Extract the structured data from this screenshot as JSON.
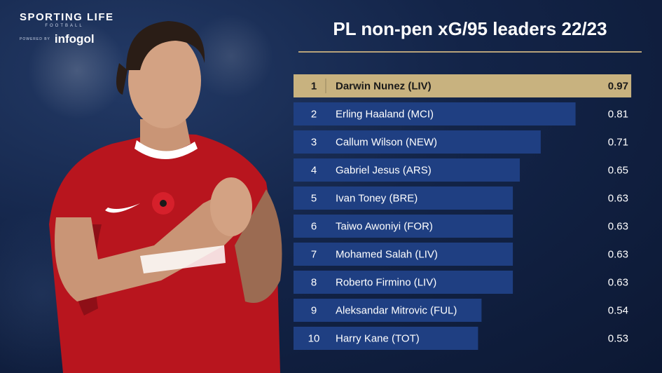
{
  "brand": {
    "title": "SPORTING LIFE",
    "subtitle": "FOOTBALL",
    "powered_by": "POWERED BY",
    "partner": "infogol"
  },
  "colors": {
    "bar": "#1f3f82",
    "leader_bar": "#c8b27f",
    "rule": "#b7a27a"
  },
  "chart_data": {
    "type": "bar",
    "orientation": "horizontal",
    "title": "PL non-pen xG/95 leaders 22/23",
    "xlabel": "",
    "ylabel": "",
    "xlim": [
      0,
      1.0
    ],
    "grid": false,
    "categories": [
      "Darwin Nunez (LIV)",
      "Erling Haaland (MCI)",
      "Callum Wilson (NEW)",
      "Gabriel Jesus (ARS)",
      "Ivan Toney (BRE)",
      "Taiwo Awoniyi (FOR)",
      "Mohamed Salah (LIV)",
      "Roberto Firmino (LIV)",
      "Aleksandar Mitrovic (FUL)",
      "Harry Kane (TOT)"
    ],
    "ranks": [
      "1",
      "2",
      "3",
      "4",
      "5",
      "6",
      "7",
      "8",
      "9",
      "10"
    ],
    "values": [
      0.97,
      0.81,
      0.71,
      0.65,
      0.63,
      0.63,
      0.63,
      0.63,
      0.54,
      0.53
    ],
    "value_labels": [
      "0.97",
      "0.81",
      "0.71",
      "0.65",
      "0.63",
      "0.63",
      "0.63",
      "0.63",
      "0.54",
      "0.53"
    ]
  }
}
